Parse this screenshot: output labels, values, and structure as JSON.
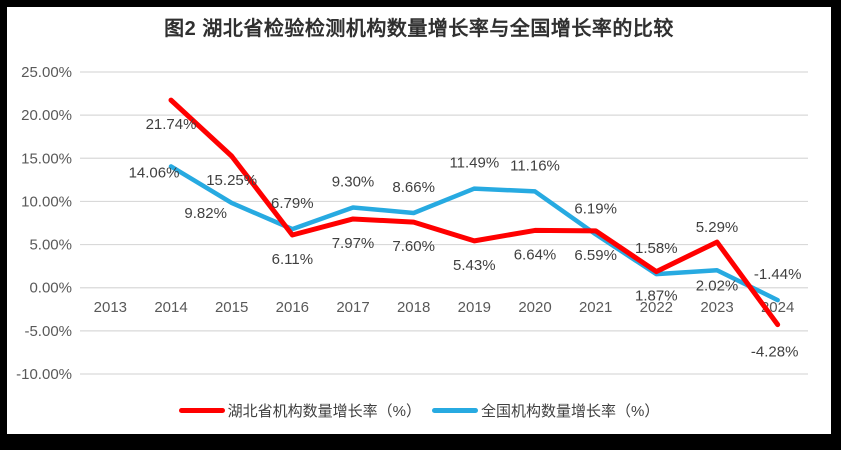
{
  "title": "图2  湖北省检验检测机构数量增长率与全国增长率的比较",
  "colors": {
    "hubei_red": "#FF0000",
    "national_blue": "#27AAE1",
    "gridline": "#D9D9D9",
    "data_label_text": "#404040",
    "axis_text": "#595959",
    "title_text": "#303030",
    "frame_border": "#000000",
    "background": "#FFFFFF"
  },
  "chart_data": {
    "type": "line",
    "title": "图2  湖北省检验检测机构数量增长率与全国增长率的比较",
    "categories": [
      "2013",
      "2014",
      "2015",
      "2016",
      "2017",
      "2018",
      "2019",
      "2020",
      "2021",
      "2022",
      "2023",
      "2024"
    ],
    "series": [
      {
        "id": "hubei",
        "name": "湖北省机构数量增长率（%）",
        "color_key": "hubei_red",
        "values": [
          null,
          21.74,
          15.25,
          6.11,
          7.97,
          7.6,
          5.43,
          6.64,
          6.59,
          1.87,
          5.29,
          -4.28
        ],
        "labels": [
          null,
          "21.74%",
          "15.25%",
          "6.11%",
          "7.97%",
          "7.60%",
          "5.43%",
          "6.64%",
          "6.59%",
          "1.87%",
          "5.29%",
          "-4.28%"
        ]
      },
      {
        "id": "national",
        "name": "全国机构数量增长率（%）",
        "color_key": "national_blue",
        "values": [
          null,
          14.06,
          9.82,
          6.79,
          9.3,
          8.66,
          11.49,
          11.16,
          6.19,
          1.58,
          2.02,
          -1.44
        ],
        "labels": [
          null,
          "14.06%",
          "9.82%",
          "6.79%",
          "9.30%",
          "8.66%",
          "11.49%",
          "11.16%",
          "6.19%",
          "1.58%",
          "2.02%",
          "-1.44%"
        ]
      }
    ],
    "y_axis": {
      "min": -10,
      "max": 25,
      "step": 5
    },
    "y_tick_labels": [
      "25.00%",
      "20.00%",
      "15.00%",
      "10.00%",
      "5.00%",
      "0.00%",
      "-5.00%",
      "-10.00%"
    ],
    "grid": true,
    "legend_position": "bottom"
  }
}
